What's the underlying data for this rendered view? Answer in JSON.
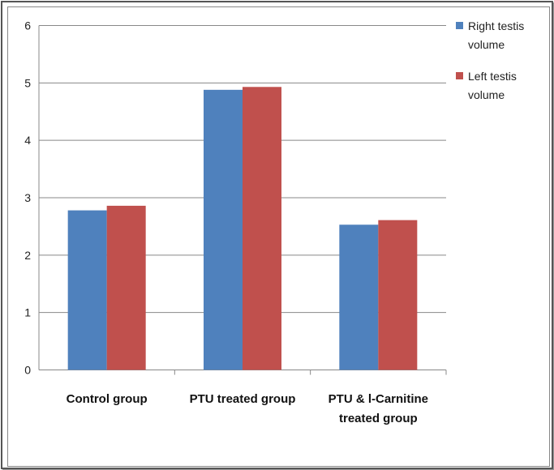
{
  "chart_data": {
    "type": "bar",
    "categories": [
      "Control group",
      "PTU treated group",
      "PTU & l-Carnitine treated group"
    ],
    "category_label_lines": [
      [
        "Control group"
      ],
      [
        "PTU treated group"
      ],
      [
        "PTU & l-Carnitine",
        "treated group"
      ]
    ],
    "series": [
      {
        "name": "Right testis volume",
        "legend_lines": [
          "Right testis",
          "volume"
        ],
        "color": "#4f81bd",
        "values": [
          2.78,
          4.88,
          2.53
        ]
      },
      {
        "name": "Left testis volume",
        "legend_lines": [
          "Left testis",
          "volume"
        ],
        "color": "#c0504d",
        "values": [
          2.86,
          4.93,
          2.61
        ]
      }
    ],
    "ylim": [
      0,
      6
    ],
    "yticks": [
      "0",
      "1",
      "2",
      "3",
      "4",
      "5",
      "6"
    ],
    "grid": true,
    "legend": "right",
    "title": "",
    "xlabel": "",
    "ylabel": ""
  }
}
